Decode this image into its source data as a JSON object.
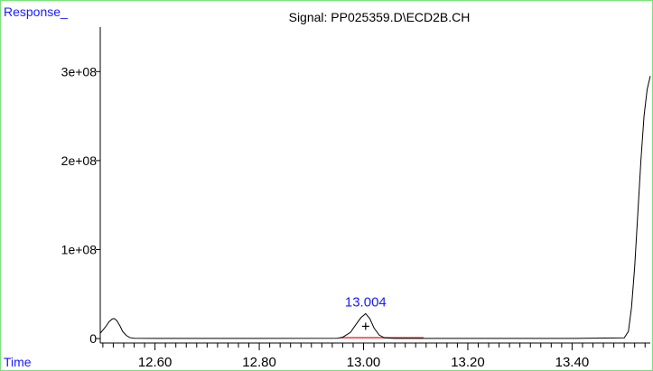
{
  "chart_data": {
    "type": "line",
    "title": "Signal: PP025359.D\\ECD2B.CH",
    "ylabel": "Response_",
    "xlabel": "Time",
    "xlim": [
      12.495,
      13.55
    ],
    "ylim": [
      -5000000,
      350000000
    ],
    "xticks": [
      12.6,
      12.8,
      13.0,
      13.2,
      13.4
    ],
    "xtick_labels": [
      "12.60",
      "12.80",
      "13.00",
      "13.20",
      "13.40"
    ],
    "yticks": [
      0,
      100000000,
      200000000,
      300000000
    ],
    "ytick_labels": [
      "0",
      "1e+08",
      "2e+08",
      "3e+08"
    ],
    "series": [
      {
        "x": [
          12.495,
          12.505,
          12.512,
          12.518,
          12.522,
          12.527,
          12.533,
          12.538,
          12.545,
          12.552,
          12.56,
          12.6,
          12.8,
          12.95,
          12.96,
          12.975,
          12.985,
          12.995,
          13.004,
          13.012,
          13.02,
          13.03,
          13.04,
          13.06,
          13.2,
          13.4,
          13.5,
          13.508,
          13.514,
          13.52,
          13.526,
          13.532,
          13.538,
          13.544,
          13.55
        ],
        "values": [
          6000000,
          13000000,
          19000000,
          22000000,
          22500000,
          20000000,
          14000000,
          8000000,
          3500000,
          1000000,
          300000,
          200000,
          200000,
          300000,
          1500000,
          7000000,
          15500000,
          23500000,
          28000000,
          22500000,
          12000000,
          4000000,
          800000,
          200000,
          200000,
          200000,
          800000,
          8000000,
          35000000,
          80000000,
          140000000,
          200000000,
          250000000,
          280000000,
          295000000
        ]
      }
    ],
    "peak": {
      "x": 13.004,
      "y": 28000000,
      "label": "13.004"
    },
    "baseline": {
      "x_start": 12.955,
      "x_end": 13.115,
      "color": "#e23a3a"
    },
    "grid": false,
    "colors": {
      "line": "#000000",
      "labels": "#1a1aff",
      "baseline": "#e23a3a",
      "frame": "#7ee07e"
    }
  }
}
